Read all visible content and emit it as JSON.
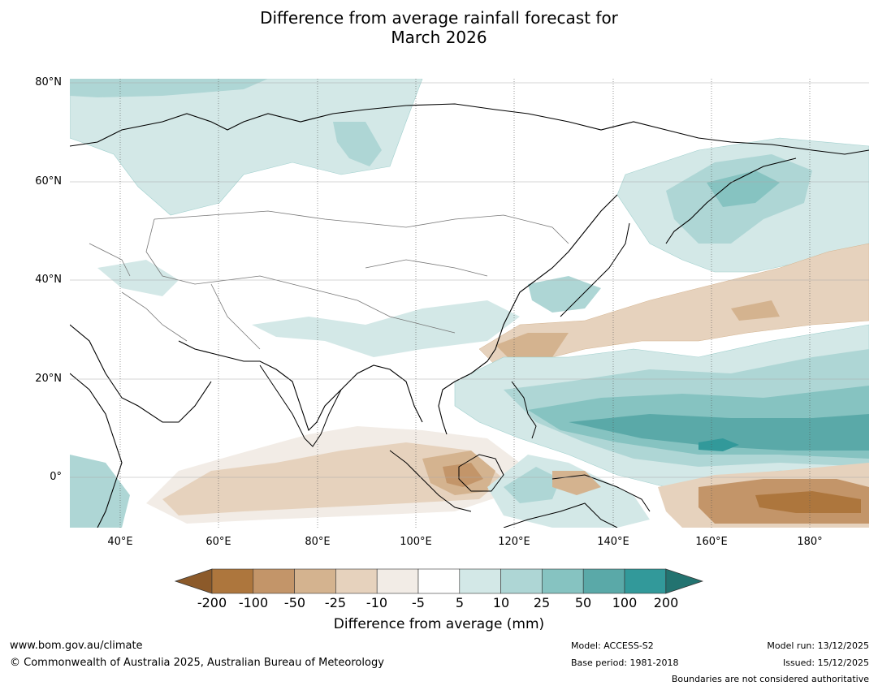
{
  "title_line1": "Difference from average rainfall forecast for",
  "title_line2": "March 2026",
  "lat_labels": [
    "80°N",
    "60°N",
    "40°N",
    "20°N",
    "0°"
  ],
  "lon_labels": [
    "40°E",
    "60°E",
    "80°E",
    "100°E",
    "120°E",
    "140°E",
    "160°E",
    "180°"
  ],
  "colorbar": {
    "title": "Difference from average (mm)",
    "ticks": [
      "-200",
      "-100",
      "-50",
      "-25",
      "-10",
      "-5",
      "5",
      "10",
      "25",
      "50",
      "100",
      "200"
    ],
    "colors": [
      "#8c5a2a",
      "#ad763d",
      "#c39569",
      "#d4b38f",
      "#e6d2bd",
      "#f2ece6",
      "#ffffff",
      "#d3e8e7",
      "#aed6d5",
      "#86c3c1",
      "#5aa9a8",
      "#32999a",
      "#237370"
    ]
  },
  "footer": {
    "website": "www.bom.gov.au/climate",
    "copyright": "© Commonwealth of Australia 2025, Australian Bureau of Meteorology",
    "model": "Model: ACCESS-S2",
    "base_period": "Base period: 1981-2018",
    "model_run": "Model run: 13/12/2025",
    "issued": "Issued: 15/12/2025",
    "disclaimer": "Boundaries are not considered authoritative"
  }
}
